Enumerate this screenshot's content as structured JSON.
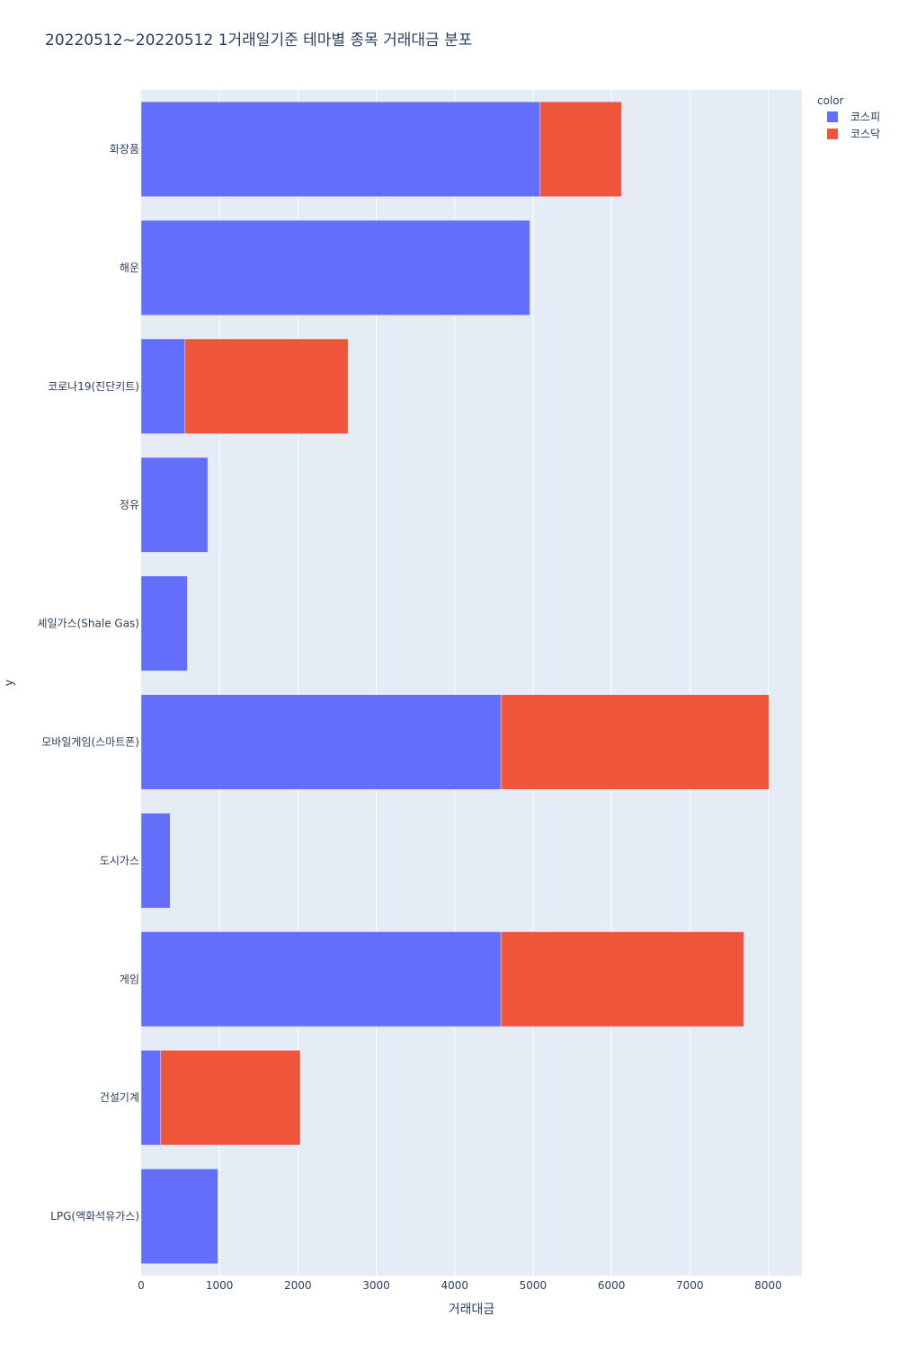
{
  "chart_data": {
    "type": "bar",
    "orientation": "horizontal",
    "barmode": "stack",
    "title": "20220512~20220512 1거래일기준 테마별 종목 거래대금 분포",
    "xlabel": "거래대금",
    "ylabel": "y",
    "xlim": [
      0,
      8430
    ],
    "xticks": [
      0,
      1000,
      2000,
      3000,
      4000,
      5000,
      6000,
      7000,
      8000
    ],
    "grid": true,
    "legend": {
      "title": "color",
      "position": "top-right"
    },
    "categories": [
      "화장품",
      "해운",
      "코로나19(진단키트)",
      "정유",
      "셰일가스(Shale Gas)",
      "모바일게임(스마트폰)",
      "도시가스",
      "게임",
      "건설기계",
      "LPG(액화석유가스)"
    ],
    "series": [
      {
        "name": "코스피",
        "color": "#636efa",
        "values": [
          5090,
          4960,
          560,
          850,
          590,
          4590,
          370,
          4590,
          250,
          980
        ]
      },
      {
        "name": "코스닥",
        "color": "#ef553b",
        "values": [
          1040,
          0,
          2080,
          0,
          0,
          3420,
          0,
          3100,
          1780,
          0
        ]
      }
    ]
  }
}
